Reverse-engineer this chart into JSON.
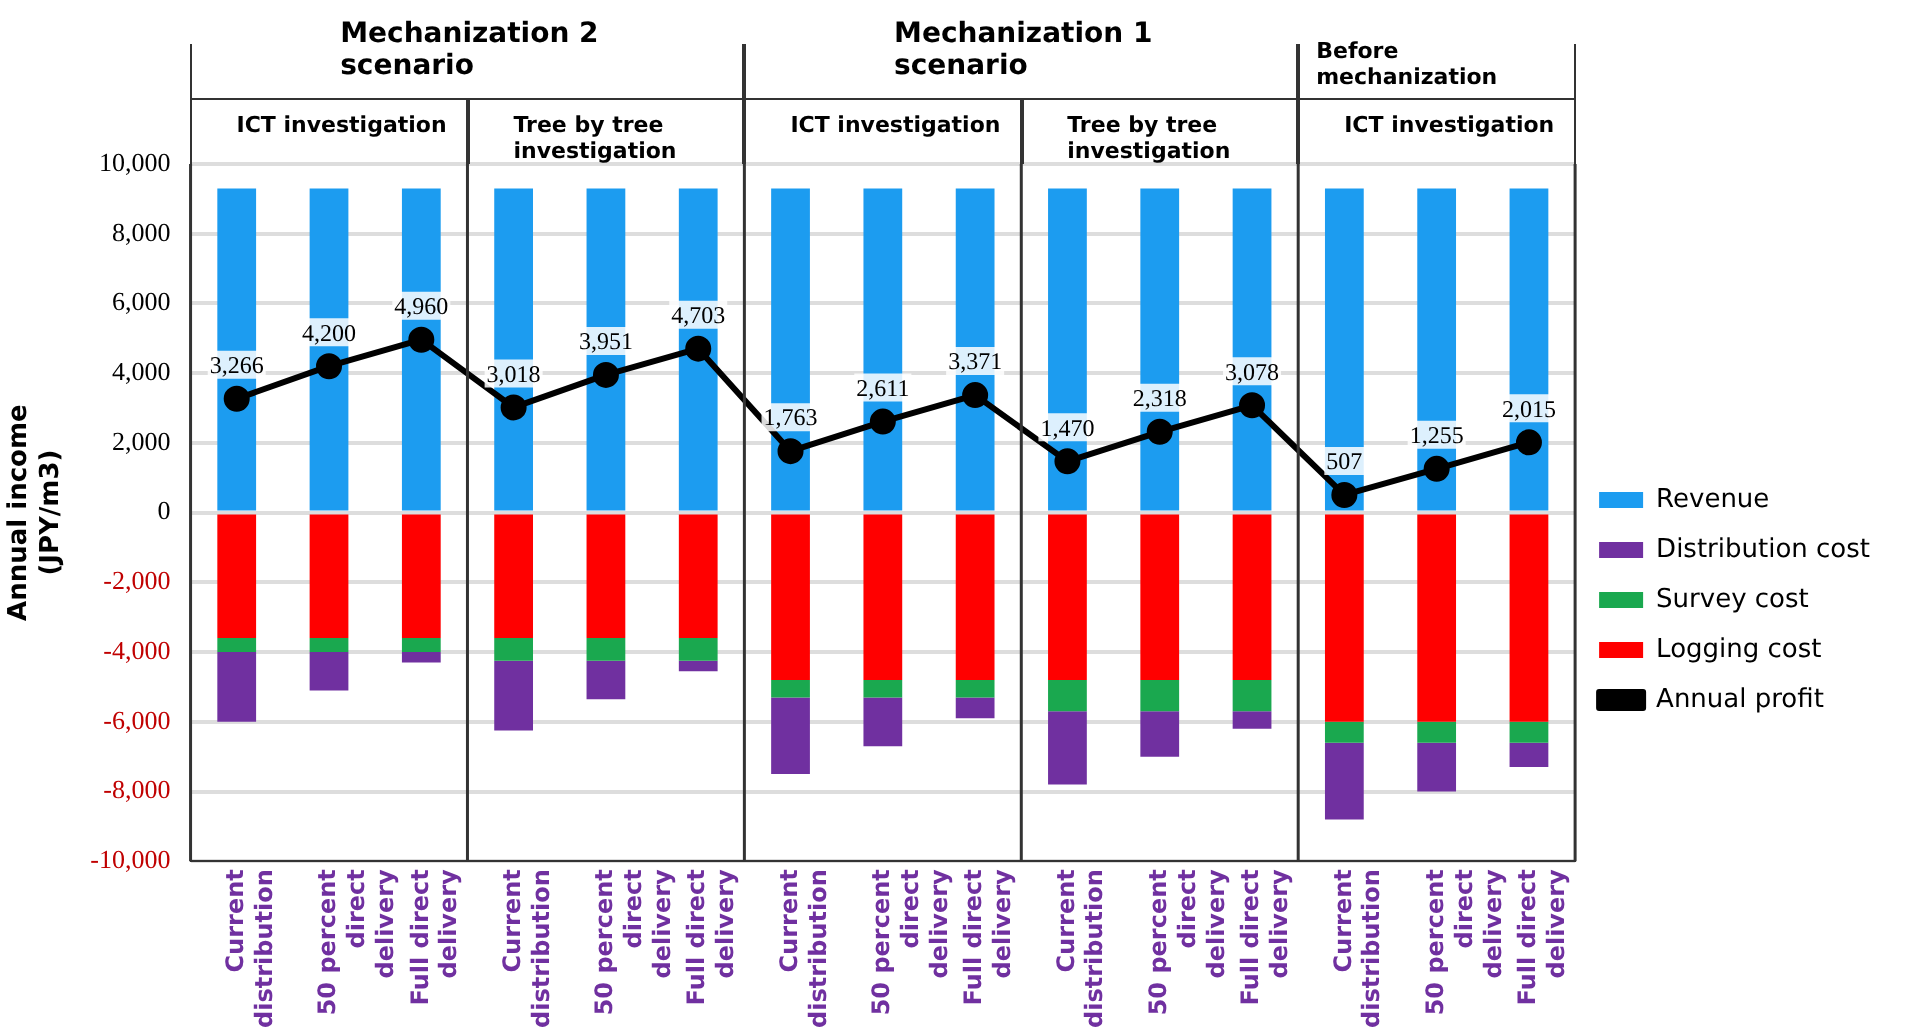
{
  "chart_data": {
    "type": "bar",
    "stacked": true,
    "ylabel": "Annual income (JPY/m3)",
    "categories": [
      "Current distribution",
      "50 percent direct delivery",
      "Full direct delivery",
      "Current distribution",
      "50 percent direct delivery",
      "Full direct delivery",
      "Current distribution",
      "50 percent direct delivery",
      "Full direct delivery",
      "Current distribution",
      "50 percent direct delivery",
      "Full direct delivery",
      "Current distribution",
      "50 percent direct delivery",
      "Full direct delivery"
    ],
    "series": [
      {
        "name": "Logging cost",
        "color": "#ff0000",
        "values": [
          -3600,
          -3600,
          -3600,
          -3600,
          -3600,
          -3600,
          -4800,
          -4800,
          -4800,
          -4800,
          -4800,
          -4800,
          -6000,
          -6000,
          -6000
        ]
      },
      {
        "name": "Survey cost",
        "color": "#1aa84f",
        "values": [
          -400,
          -400,
          -400,
          -650,
          -650,
          -650,
          -500,
          -500,
          -500,
          -900,
          -900,
          -900,
          -600,
          -600,
          -600
        ]
      },
      {
        "name": "Distribution cost",
        "color": "#7030a0",
        "values": [
          -2000,
          -1100,
          -300,
          -2000,
          -1100,
          -300,
          -2200,
          -1400,
          -600,
          -2100,
          -1300,
          -500,
          -2200,
          -1400,
          -700
        ]
      },
      {
        "name": "Revenue",
        "color": "#1c9cf0",
        "values": [
          9300,
          9300,
          9300,
          9300,
          9300,
          9300,
          9300,
          9300,
          9300,
          9300,
          9300,
          9300,
          9300,
          9300,
          9300
        ]
      },
      {
        "name": "Annual profit",
        "type": "line",
        "color": "#000000",
        "marker": "circle",
        "value_labels": [
          "3,266",
          "4,200",
          "4,960",
          "3,018",
          "3,951",
          "4,703",
          "1,763",
          "2,611",
          "3,371",
          "1,470",
          "2,318",
          "3,078",
          "507",
          "1,255",
          "2,015"
        ],
        "values": [
          3266,
          4200,
          4960,
          3018,
          3951,
          4703,
          1763,
          2611,
          3371,
          1470,
          2318,
          3078,
          507,
          1255,
          2015
        ]
      }
    ],
    "ylim": [
      -10000,
      10000
    ],
    "yticks": [
      {
        "value": -10000,
        "label": "-10,000"
      },
      {
        "value": -8000,
        "label": "-8,000"
      },
      {
        "value": -6000,
        "label": "-6,000"
      },
      {
        "value": -4000,
        "label": "-4,000"
      },
      {
        "value": -2000,
        "label": "-2,000"
      },
      0,
      {
        "value": 2000,
        "label": "2,000"
      },
      {
        "value": 4000,
        "label": "4,000"
      },
      {
        "value": 6000,
        "label": "6,000"
      },
      {
        "value": 8000,
        "label": "8,000"
      },
      {
        "value": 10000,
        "label": "10,000"
      }
    ],
    "grid": "y",
    "legend": "right",
    "annotations": [
      "Mechanization 2 scenario",
      "Mechanization 1 scenario",
      "Before mechanization",
      "ICT investigation",
      "Tree by tree investigation",
      "ICT investigation",
      "Tree by tree investigation",
      "ICT investigation"
    ]
  }
}
